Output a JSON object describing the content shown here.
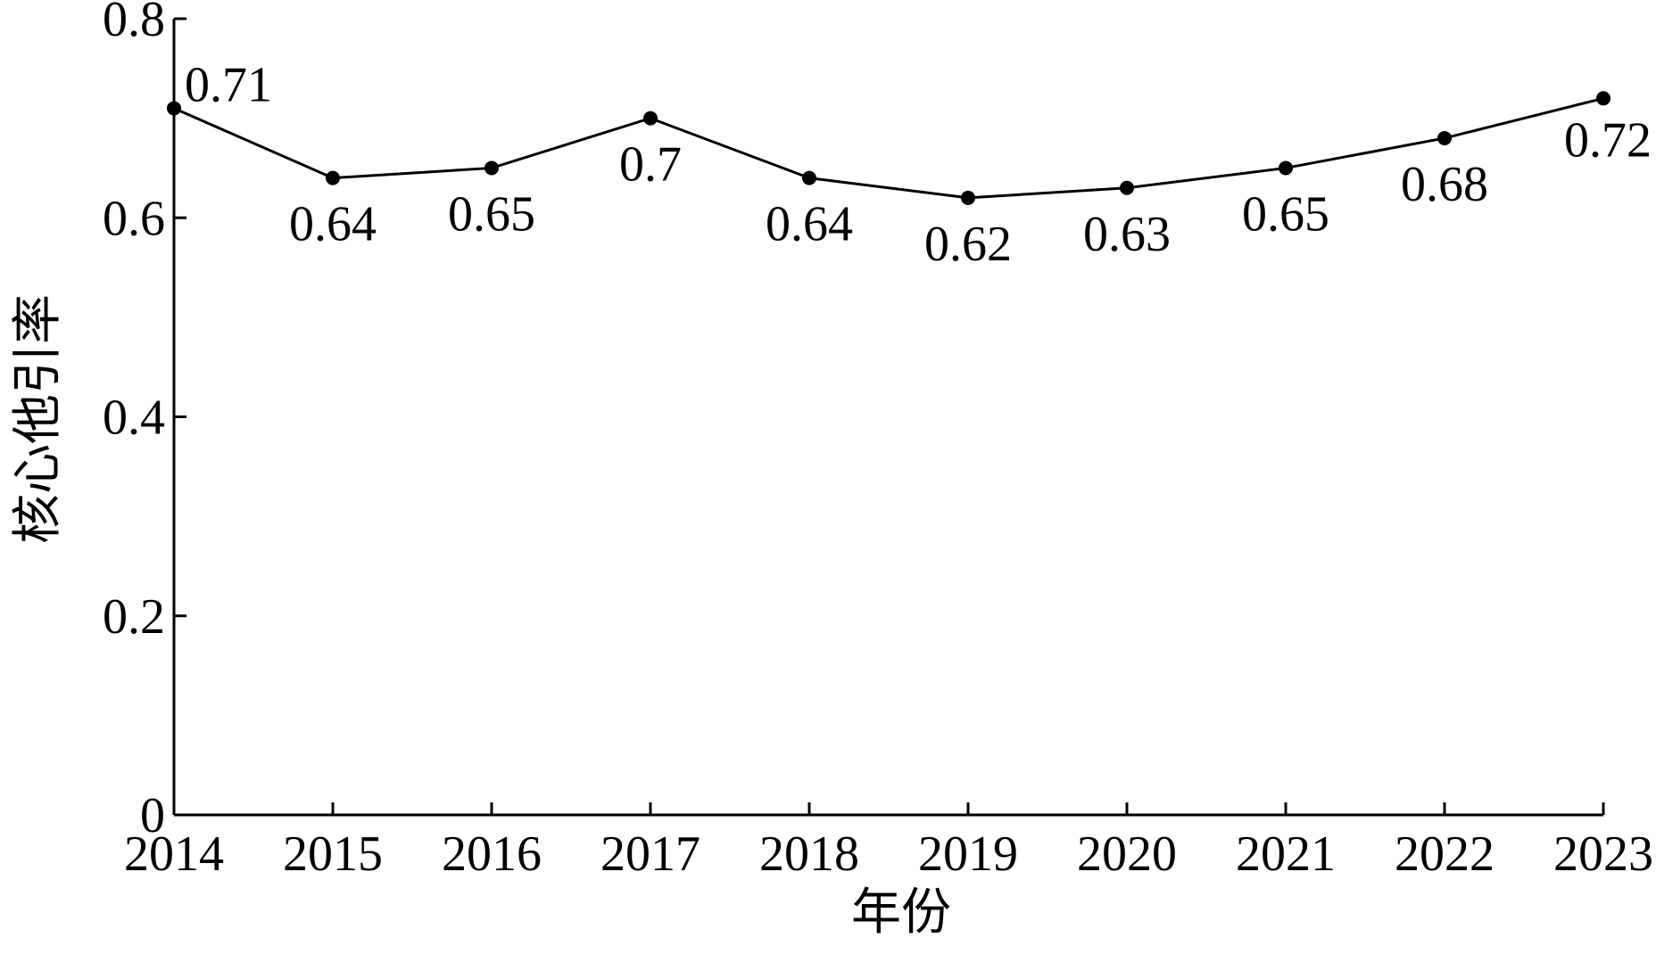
{
  "chart_data": {
    "type": "line",
    "x_label": "年份",
    "y_label": "核心他引率",
    "categories": [
      "2014",
      "2015",
      "2016",
      "2017",
      "2018",
      "2019",
      "2020",
      "2021",
      "2022",
      "2023"
    ],
    "values": [
      0.71,
      0.64,
      0.65,
      0.7,
      0.64,
      0.62,
      0.63,
      0.65,
      0.68,
      0.72
    ],
    "color": "#000000",
    "ylim": [
      0,
      0.8
    ],
    "yticks": [
      0,
      0.2,
      0.4,
      0.6,
      0.8
    ],
    "grid": false
  }
}
